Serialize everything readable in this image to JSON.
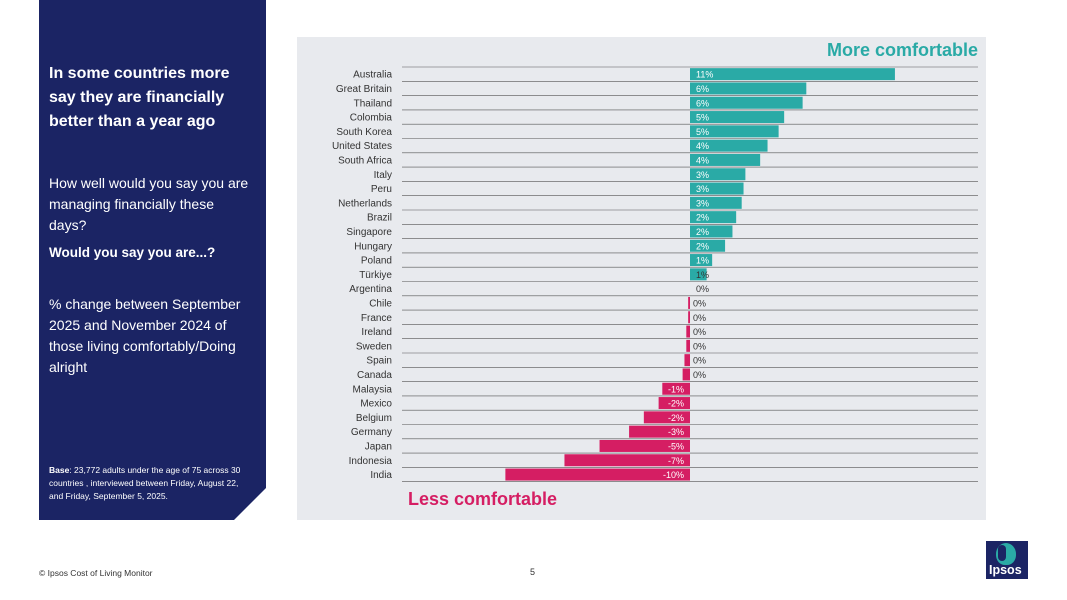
{
  "left_panel": {
    "headline": "In some countries more say they are financially better than a year ago",
    "question": "How well would you say you are managing financially these days?",
    "sub_question": "Would you say you are...?",
    "metric": "% change between September 2025 and November 2024 of those living comfortably/Doing alright",
    "base_label": "Base",
    "base_text": ": 23,772 adults  under the age of 75 across 30 countries , interviewed between Friday, August 22, and Friday, September 5, 2025."
  },
  "chart_labels": {
    "more": "More comfortable",
    "less": "Less comfortable"
  },
  "colors": {
    "positive": "#2aaaa6",
    "negative": "#d51e63",
    "navy": "#1b2464",
    "panel_bg": "#e8eaee"
  },
  "chart_data": {
    "type": "bar",
    "orientation": "horizontal",
    "categories": [
      "Australia",
      "Great Britain",
      "Thailand",
      "Colombia",
      "South Korea",
      "United States",
      "South Africa",
      "Italy",
      "Peru",
      "Netherlands",
      "Brazil",
      "Singapore",
      "Hungary",
      "Poland",
      "Türkiye",
      "Argentina",
      "Chile",
      "France",
      "Ireland",
      "Sweden",
      "Spain",
      "Canada",
      "Malaysia",
      "Mexico",
      "Belgium",
      "Germany",
      "Japan",
      "Indonesia",
      "India"
    ],
    "values": [
      11.1,
      6.3,
      6.1,
      5.1,
      4.8,
      4.2,
      3.8,
      3.0,
      2.9,
      2.8,
      2.5,
      2.3,
      1.9,
      1.2,
      0.9,
      0.0,
      -0.1,
      -0.1,
      -0.2,
      -0.2,
      -0.3,
      -0.4,
      -1.5,
      -1.7,
      -2.5,
      -3.3,
      -4.9,
      -6.8,
      -10.0
    ],
    "value_labels": [
      "11%",
      "6%",
      "6%",
      "5%",
      "5%",
      "4%",
      "4%",
      "3%",
      "3%",
      "3%",
      "2%",
      "2%",
      "2%",
      "1%",
      "1%",
      "0%",
      "0%",
      "0%",
      "0%",
      "0%",
      "0%",
      "0%",
      "-1%",
      "-2%",
      "-2%",
      "-3%",
      "-5%",
      "-7%",
      "-10%"
    ],
    "xlim": [
      -15.6,
      15.6
    ],
    "grid": "horizontal row separators"
  },
  "footer": {
    "copyright": "© Ipsos Cost of Living Monitor",
    "page_number": "5",
    "logo_text": "Ipsos"
  }
}
